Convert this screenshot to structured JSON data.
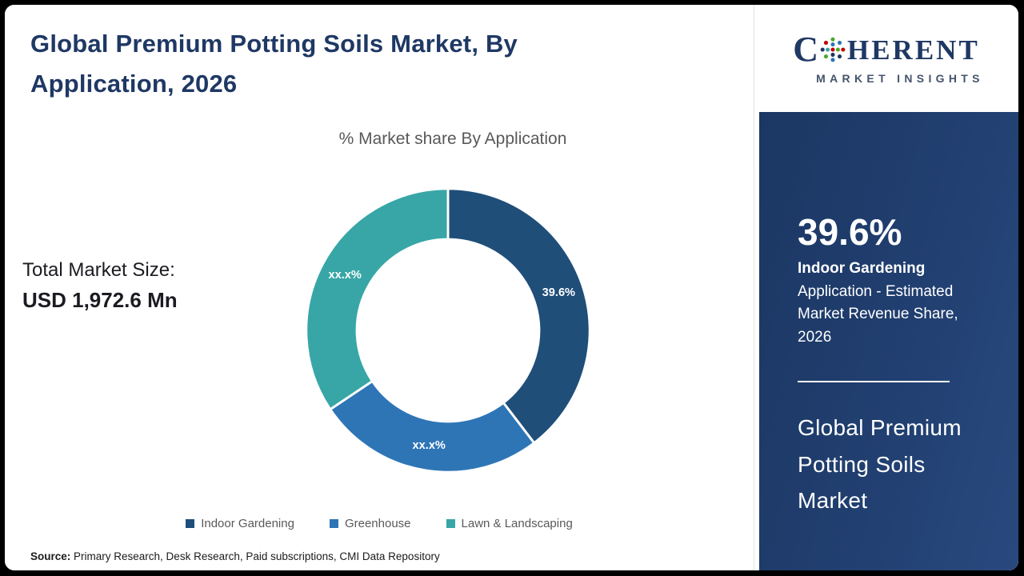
{
  "title": "Global Premium Potting Soils Market, By Application, 2026",
  "chart_title": "% Market share By Application",
  "total_market": {
    "label": "Total Market Size:",
    "value": "USD 1,972.6 Mn"
  },
  "source": {
    "label": "Source:",
    "text": "Primary Research, Desk Research, Paid subscriptions, CMI Data Repository"
  },
  "logo": {
    "letter_c": "C",
    "letters_rest": "HERENT",
    "tagline": "MARKET INSIGHTS"
  },
  "sidebar": {
    "stat_value": "39.6%",
    "stat_name": "Indoor Gardening",
    "stat_desc": "Application - Estimated Market Revenue Share, 2026",
    "panel_title": "Global Premium Potting Soils Market"
  },
  "colors": {
    "title_text": "#1f3864",
    "panel_background": "#1f3d6f",
    "subtitle_text": "#595959"
  },
  "chart_data": {
    "type": "pie",
    "donut": true,
    "title": "% Market share By Application",
    "categories": [
      "Indoor Gardening",
      "Greenhouse",
      "Lawn & Landscaping"
    ],
    "values": [
      39.6,
      26.0,
      34.4
    ],
    "slice_labels": [
      "39.6%",
      "xx.x%",
      "xx.x%"
    ],
    "colors": [
      "#1f4e79",
      "#2e75b6",
      "#38a6a6"
    ],
    "legend_position": "bottom",
    "start_angle_deg": 0,
    "direction": "clockwise"
  }
}
